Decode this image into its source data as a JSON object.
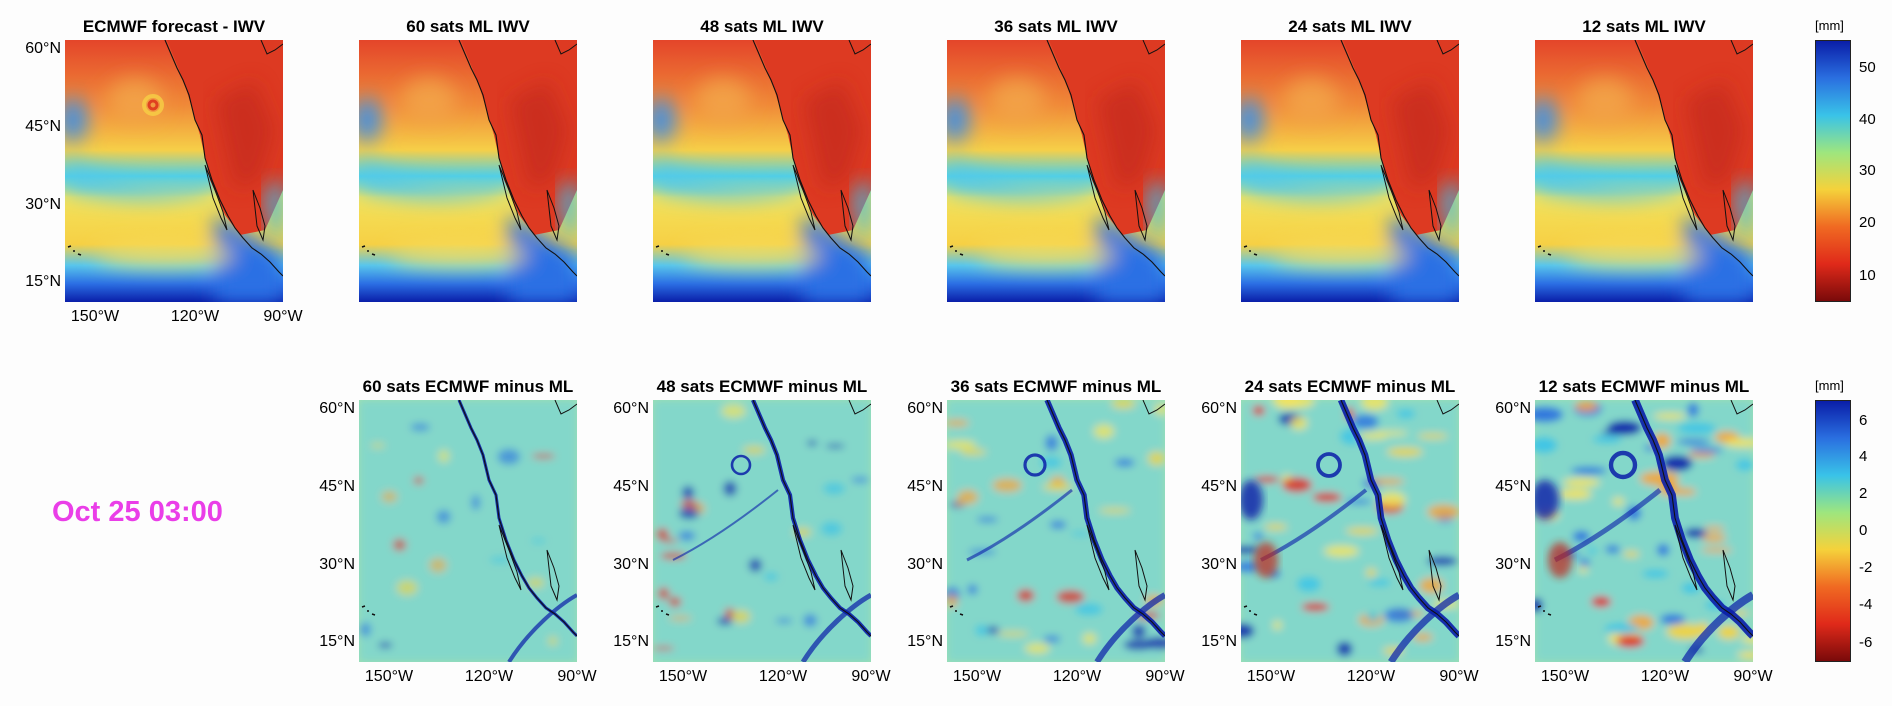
{
  "top_row": {
    "panels": [
      {
        "title": "ECMWF forecast - IWV"
      },
      {
        "title": "60 sats ML IWV"
      },
      {
        "title": "48 sats ML IWV"
      },
      {
        "title": "36 sats ML IWV"
      },
      {
        "title": "24 sats ML IWV"
      },
      {
        "title": "12 sats ML IWV"
      }
    ],
    "lat_ticks": [
      "60°N",
      "45°N",
      "30°N",
      "15°N"
    ],
    "lon_ticks": [
      "150°W",
      "120°W",
      "90°W"
    ],
    "colorbar": {
      "unit": "[mm]",
      "ticks": [
        "50",
        "40",
        "30",
        "20",
        "10"
      ],
      "range": [
        5,
        56
      ],
      "colors": [
        "#7a0a0a",
        "#e02a1a",
        "#f06a22",
        "#f5d23b",
        "#9ee67e",
        "#39c3e8",
        "#2a6fe0",
        "#0a1ea8"
      ]
    }
  },
  "bottom_row": {
    "panels": [
      {
        "title": "60 sats ECMWF minus ML"
      },
      {
        "title": "48 sats ECMWF minus ML"
      },
      {
        "title": "36 sats ECMWF minus ML"
      },
      {
        "title": "24 sats ECMWF minus ML"
      },
      {
        "title": "12 sats ECMWF minus ML"
      }
    ],
    "lat_ticks": [
      "60°N",
      "45°N",
      "30°N",
      "15°N"
    ],
    "lon_ticks": [
      "150°W",
      "120°W",
      "90°W"
    ],
    "colorbar": {
      "unit": "[mm]",
      "ticks": [
        "6",
        "4",
        "2",
        "0",
        "-2",
        "-4",
        "-6"
      ],
      "range": [
        -7,
        7
      ],
      "colors": [
        "#7a0a0a",
        "#e02a1a",
        "#f06a22",
        "#f5d23b",
        "#9ee67e",
        "#39c3e8",
        "#2a6fe0",
        "#0a1ea8"
      ]
    }
  },
  "datetime_label": "Oct 25 03:00",
  "label_color": "#ea3ee8"
}
